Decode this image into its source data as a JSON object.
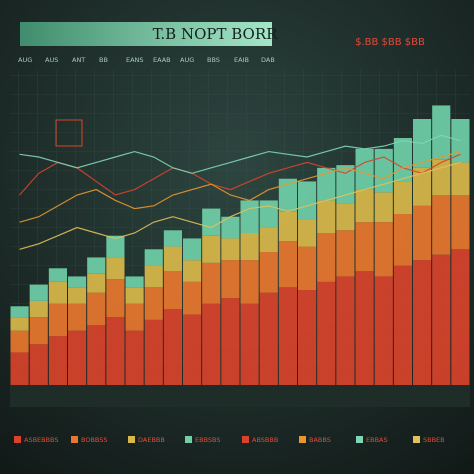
{
  "chart_data": [
    {
      "type": "bar",
      "stacked": true,
      "title": "T.B NOPT BORR",
      "subtitle": "$.BB $BB $BB",
      "annotations": [
        "AUG",
        "AUS",
        "ANT",
        "BB",
        "EANS",
        "EAAB",
        "AUG",
        "BBS",
        "EAIB",
        "DAB"
      ],
      "ylim": [
        0,
        105
      ],
      "categories": [
        null,
        null,
        null,
        null,
        null,
        null,
        null,
        null,
        null,
        null,
        null,
        null,
        null,
        null,
        null,
        null,
        null,
        null,
        null,
        null,
        null,
        null,
        null,
        null
      ],
      "series": [
        {
          "name": "ASBEBBBS",
          "color": "#d9432b",
          "values": [
            12,
            15,
            18,
            20,
            22,
            25,
            20,
            24,
            28,
            26,
            30,
            32,
            30,
            34,
            36,
            35,
            38,
            40,
            42,
            40,
            44,
            46,
            48,
            50
          ]
        },
        {
          "name": "BOBBSS",
          "color": "#e8772e",
          "values": [
            8,
            10,
            12,
            10,
            12,
            14,
            10,
            12,
            14,
            12,
            15,
            14,
            16,
            15,
            17,
            16,
            18,
            17,
            18,
            20,
            19,
            20,
            22,
            20
          ]
        },
        {
          "name": "DAEBBB",
          "color": "#d9b84a",
          "values": [
            5,
            6,
            8,
            6,
            7,
            8,
            6,
            8,
            9,
            8,
            10,
            8,
            10,
            9,
            11,
            10,
            12,
            10,
            12,
            11,
            12,
            14,
            13,
            12
          ]
        },
        {
          "name": "EBBSBS",
          "color": "#6fcfa8",
          "values": [
            4,
            6,
            5,
            4,
            6,
            8,
            4,
            6,
            6,
            8,
            10,
            8,
            12,
            10,
            12,
            14,
            12,
            14,
            15,
            16,
            16,
            18,
            20,
            16
          ]
        }
      ]
    },
    {
      "type": "line",
      "ylim": [
        0,
        105
      ],
      "series": [
        {
          "name": "ABSBBB",
          "color": "#d9432b",
          "values": [
            70,
            78,
            82,
            80,
            75,
            70,
            72,
            76,
            80,
            78,
            74,
            72,
            75,
            78,
            80,
            82,
            80,
            78,
            82,
            84,
            80,
            78,
            82,
            85
          ]
        },
        {
          "name": "BABBS",
          "color": "#e8972e",
          "values": [
            60,
            62,
            66,
            70,
            72,
            68,
            65,
            66,
            70,
            72,
            74,
            70,
            68,
            72,
            74,
            76,
            78,
            80,
            78,
            76,
            80,
            82,
            84,
            86
          ]
        },
        {
          "name": "EBBAS",
          "color": "#7fd6b4",
          "values": [
            85,
            84,
            82,
            80,
            82,
            84,
            86,
            84,
            80,
            78,
            80,
            82,
            84,
            86,
            85,
            84,
            86,
            88,
            87,
            88,
            90,
            89,
            92,
            90
          ]
        },
        {
          "name": "SBBEB",
          "color": "#e0c15a",
          "values": [
            50,
            52,
            55,
            58,
            56,
            54,
            56,
            60,
            62,
            60,
            58,
            62,
            65,
            66,
            64,
            66,
            68,
            70,
            72,
            74,
            76,
            78,
            80,
            82
          ]
        }
      ]
    }
  ]
}
